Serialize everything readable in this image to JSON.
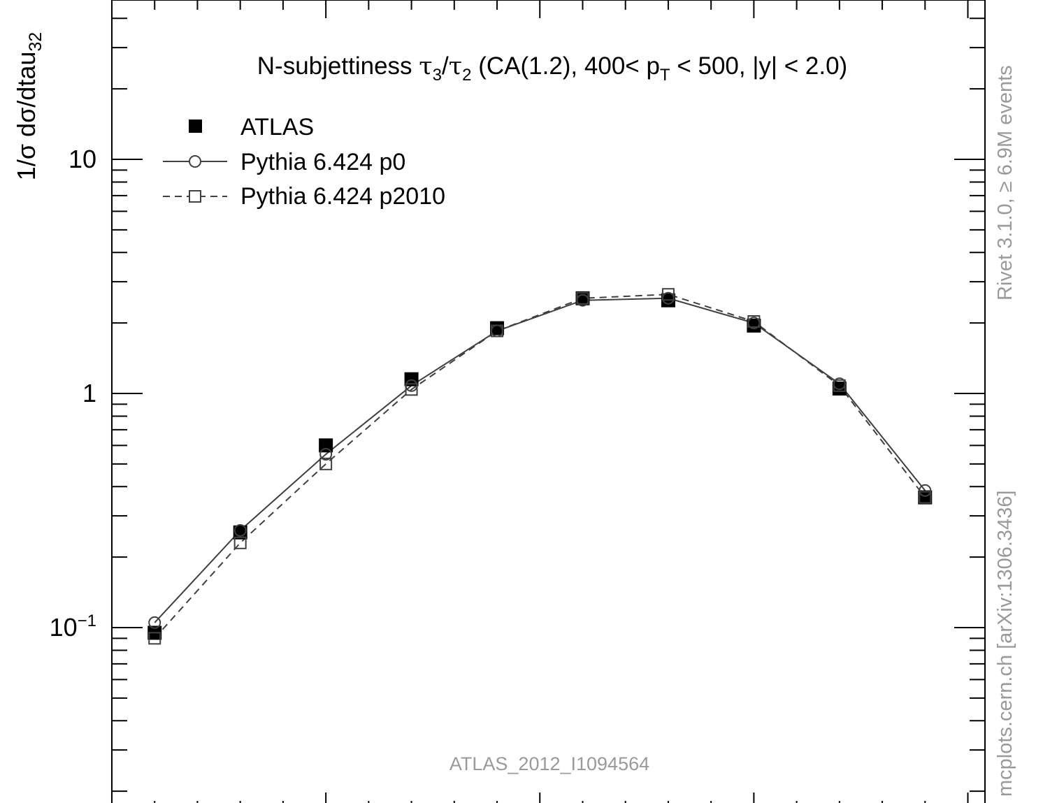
{
  "chart_data": {
    "type": "line",
    "title_prefix": "N-subjettiness ",
    "title_tau_a": "τ",
    "title_tau_a_sub": "3",
    "title_slash": "/",
    "title_tau_b": "τ",
    "title_tau_b_sub": "2",
    "title_cut_a": " (CA(1.2), 400< p",
    "title_pt_sub": "T",
    "title_cut_b": " < 500, |y| < 2.0)",
    "ylabel_main": "1/σ dσ/dtau",
    "ylabel_sub": "32",
    "y_scale": "log",
    "ylim": [
      0.02,
      50
    ],
    "xlim": [
      0.0,
      1.02
    ],
    "y_tick_labels": [
      {
        "value": 10,
        "base": "10",
        "exp": ""
      },
      {
        "value": 1,
        "base": "1",
        "exp": ""
      },
      {
        "value": 0.1,
        "base": "10",
        "exp": "−1"
      }
    ],
    "x": [
      0.05,
      0.15,
      0.25,
      0.35,
      0.45,
      0.55,
      0.65,
      0.75,
      0.85,
      0.95
    ],
    "series": [
      {
        "name": "ATLAS",
        "marker": "filled-square",
        "line": "none",
        "color": "#000000",
        "values": [
          0.095,
          0.255,
          0.6,
          1.15,
          1.9,
          2.55,
          2.5,
          1.95,
          1.05,
          0.36
        ]
      },
      {
        "name": "Pythia 6.424 p0",
        "marker": "open-circle",
        "line": "solid",
        "color": "#404040",
        "values": [
          0.105,
          0.26,
          0.55,
          1.08,
          1.85,
          2.5,
          2.55,
          2.0,
          1.1,
          0.385
        ]
      },
      {
        "name": "Pythia 6.424 p2010",
        "marker": "open-square",
        "line": "dashed",
        "color": "#404040",
        "values": [
          0.09,
          0.23,
          0.5,
          1.04,
          1.85,
          2.55,
          2.65,
          2.03,
          1.08,
          0.36
        ]
      }
    ],
    "legend_position": "top-left",
    "watermark": "ATLAS_2012_I1094564",
    "side_label_top": "Rivet 3.1.0, ≥ 6.9M events",
    "side_label_bottom": "mcplots.cern.ch [arXiv:1306.3436]"
  }
}
